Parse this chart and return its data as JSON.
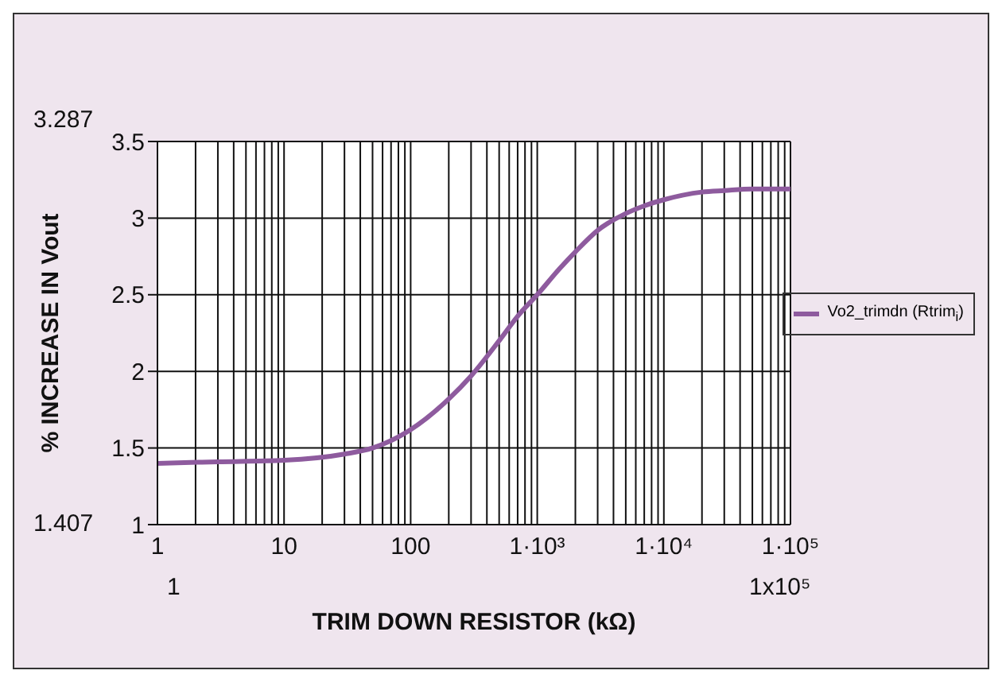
{
  "chart_data": {
    "type": "line",
    "xlabel": "TRIM DOWN RESISTOR (kΩ)",
    "ylabel": "% INCREASE IN Vout",
    "annotations": [
      "3.287",
      "1.407",
      "1",
      "1x10⁵"
    ],
    "log": "x",
    "grid": true,
    "legend": "right",
    "marker": "none",
    "line_style": "solid",
    "xlim": [
      1,
      100000
    ],
    "ylim": [
      1,
      3.5
    ],
    "yticks": [
      1,
      1.5,
      2,
      2.5,
      3,
      3.5
    ],
    "xticks": [
      1,
      {
        "value": 2,
        "label": null
      },
      {
        "value": 3,
        "label": null
      },
      {
        "value": 4,
        "label": null
      },
      {
        "value": 5,
        "label": null
      },
      {
        "value": 6,
        "label": null
      },
      {
        "value": 7,
        "label": null
      },
      {
        "value": 8,
        "label": null
      },
      {
        "value": 9,
        "label": null
      },
      10,
      {
        "value": 20,
        "label": null
      },
      {
        "value": 30,
        "label": null
      },
      {
        "value": 40,
        "label": null
      },
      {
        "value": 50,
        "label": null
      },
      {
        "value": 60,
        "label": null
      },
      {
        "value": 70,
        "label": null
      },
      {
        "value": 80,
        "label": null
      },
      {
        "value": 90,
        "label": null
      },
      100,
      {
        "value": 200,
        "label": null
      },
      {
        "value": 300,
        "label": null
      },
      {
        "value": 400,
        "label": null
      },
      {
        "value": 500,
        "label": null
      },
      {
        "value": 600,
        "label": null
      },
      {
        "value": 700,
        "label": null
      },
      {
        "value": 800,
        "label": null
      },
      {
        "value": 900,
        "label": null
      },
      {
        "value": 1000,
        "label": "1·10³"
      },
      {
        "value": 2000,
        "label": null
      },
      {
        "value": 3000,
        "label": null
      },
      {
        "value": 4000,
        "label": null
      },
      {
        "value": 5000,
        "label": null
      },
      {
        "value": 6000,
        "label": null
      },
      {
        "value": 7000,
        "label": null
      },
      {
        "value": 8000,
        "label": null
      },
      {
        "value": 9000,
        "label": null
      },
      {
        "value": 10000,
        "label": "1·10⁴"
      },
      {
        "value": 20000,
        "label": null
      },
      {
        "value": 30000,
        "label": null
      },
      {
        "value": 40000,
        "label": null
      },
      {
        "value": 50000,
        "label": null
      },
      {
        "value": 60000,
        "label": null
      },
      {
        "value": 70000,
        "label": null
      },
      {
        "value": 80000,
        "label": null
      },
      {
        "value": 90000,
        "label": null
      },
      {
        "value": 100000,
        "label": "1·10⁵"
      }
    ],
    "series": [
      {
        "name": "Vo2_trimdn (Rtrim$_{i}$)",
        "color": "#8e5b9e",
        "x": [
          1,
          3,
          10,
          30,
          50,
          100,
          200,
          300,
          500,
          700,
          1000,
          1500,
          2000,
          3000,
          5000,
          7000,
          10000,
          20000,
          30000,
          50000,
          100000
        ],
        "values": [
          1.4,
          1.41,
          1.42,
          1.46,
          1.5,
          1.62,
          1.82,
          1.97,
          2.2,
          2.36,
          2.5,
          2.67,
          2.78,
          2.92,
          3.03,
          3.08,
          3.12,
          3.17,
          3.18,
          3.19,
          3.19
        ]
      }
    ]
  }
}
